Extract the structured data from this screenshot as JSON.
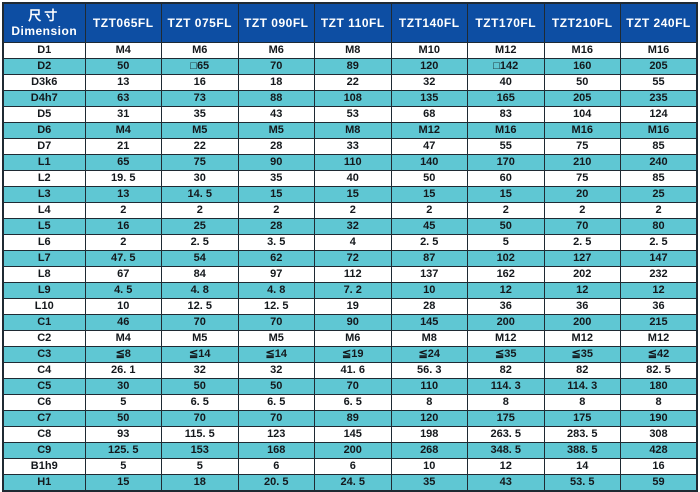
{
  "colors": {
    "header_bg": "#0d4ea3",
    "header_text": "#ffffff",
    "stripe_teal": "#5fc7d3",
    "border": "#1f2a33",
    "text": "#14181c"
  },
  "table": {
    "header": {
      "dimension_label_zh": "尺寸",
      "dimension_label_en": "Dimension",
      "columns": [
        "TZT065FL",
        "TZT 075FL",
        "TZT 090FL",
        "TZT 110FL",
        "TZT140FL",
        "TZT170FL",
        "TZT210FL",
        "TZT 240FL"
      ]
    },
    "rows": [
      {
        "label": "D1",
        "values": [
          "M4",
          "M6",
          "M6",
          "M8",
          "M10",
          "M12",
          "M16",
          "M16"
        ]
      },
      {
        "label": "D2",
        "values": [
          "50",
          "□65",
          "70",
          "89",
          "120",
          "□142",
          "160",
          "205"
        ]
      },
      {
        "label": "D3k6",
        "values": [
          "13",
          "16",
          "18",
          "22",
          "32",
          "40",
          "50",
          "55"
        ]
      },
      {
        "label": "D4h7",
        "values": [
          "63",
          "73",
          "88",
          "108",
          "135",
          "165",
          "205",
          "235"
        ]
      },
      {
        "label": "D5",
        "values": [
          "31",
          "35",
          "43",
          "53",
          "68",
          "83",
          "104",
          "124"
        ]
      },
      {
        "label": "D6",
        "values": [
          "M4",
          "M5",
          "M5",
          "M8",
          "M12",
          "M16",
          "M16",
          "M16"
        ]
      },
      {
        "label": "D7",
        "values": [
          "21",
          "22",
          "28",
          "33",
          "47",
          "55",
          "75",
          "85"
        ]
      },
      {
        "label": "L1",
        "values": [
          "65",
          "75",
          "90",
          "110",
          "140",
          "170",
          "210",
          "240"
        ]
      },
      {
        "label": "L2",
        "values": [
          "19. 5",
          "30",
          "35",
          "40",
          "50",
          "60",
          "75",
          "85"
        ]
      },
      {
        "label": "L3",
        "values": [
          "13",
          "14. 5",
          "15",
          "15",
          "15",
          "15",
          "20",
          "25"
        ]
      },
      {
        "label": "L4",
        "values": [
          "2",
          "2",
          "2",
          "2",
          "2",
          "2",
          "2",
          "2"
        ]
      },
      {
        "label": "L5",
        "values": [
          "16",
          "25",
          "28",
          "32",
          "45",
          "50",
          "70",
          "80"
        ]
      },
      {
        "label": "L6",
        "values": [
          "2",
          "2. 5",
          "3. 5",
          "4",
          "2. 5",
          "5",
          "2. 5",
          "2. 5"
        ]
      },
      {
        "label": "L7",
        "values": [
          "47. 5",
          "54",
          "62",
          "72",
          "87",
          "102",
          "127",
          "147"
        ]
      },
      {
        "label": "L8",
        "values": [
          "67",
          "84",
          "97",
          "112",
          "137",
          "162",
          "202",
          "232"
        ]
      },
      {
        "label": "L9",
        "values": [
          "4. 5",
          "4. 8",
          "4. 8",
          "7. 2",
          "10",
          "12",
          "12",
          "12"
        ]
      },
      {
        "label": "L10",
        "values": [
          "10",
          "12. 5",
          "12. 5",
          "19",
          "28",
          "36",
          "36",
          "36"
        ]
      },
      {
        "label": "C1",
        "values": [
          "46",
          "70",
          "70",
          "90",
          "145",
          "200",
          "200",
          "215"
        ]
      },
      {
        "label": "C2",
        "values": [
          "M4",
          "M5",
          "M5",
          "M6",
          "M8",
          "M12",
          "M12",
          "M12"
        ]
      },
      {
        "label": "C3",
        "values": [
          "≦8",
          "≦14",
          "≦14",
          "≦19",
          "≦24",
          "≦35",
          "≦35",
          "≦42"
        ]
      },
      {
        "label": "C4",
        "values": [
          "26. 1",
          "32",
          "32",
          "41. 6",
          "56. 3",
          "82",
          "82",
          "82. 5"
        ]
      },
      {
        "label": "C5",
        "values": [
          "30",
          "50",
          "50",
          "70",
          "110",
          "114. 3",
          "114. 3",
          "180"
        ]
      },
      {
        "label": "C6",
        "values": [
          "5",
          "6. 5",
          "6. 5",
          "6. 5",
          "8",
          "8",
          "8",
          "8"
        ]
      },
      {
        "label": "C7",
        "values": [
          "50",
          "70",
          "70",
          "89",
          "120",
          "175",
          "175",
          "190"
        ]
      },
      {
        "label": "C8",
        "values": [
          "93",
          "115. 5",
          "123",
          "145",
          "198",
          "263. 5",
          "283. 5",
          "308"
        ]
      },
      {
        "label": "C9",
        "values": [
          "125. 5",
          "153",
          "168",
          "200",
          "268",
          "348. 5",
          "388. 5",
          "428"
        ]
      },
      {
        "label": "B1h9",
        "values": [
          "5",
          "5",
          "6",
          "6",
          "10",
          "12",
          "14",
          "16"
        ]
      },
      {
        "label": "H1",
        "values": [
          "15",
          "18",
          "20. 5",
          "24. 5",
          "35",
          "43",
          "53. 5",
          "59"
        ]
      }
    ]
  }
}
